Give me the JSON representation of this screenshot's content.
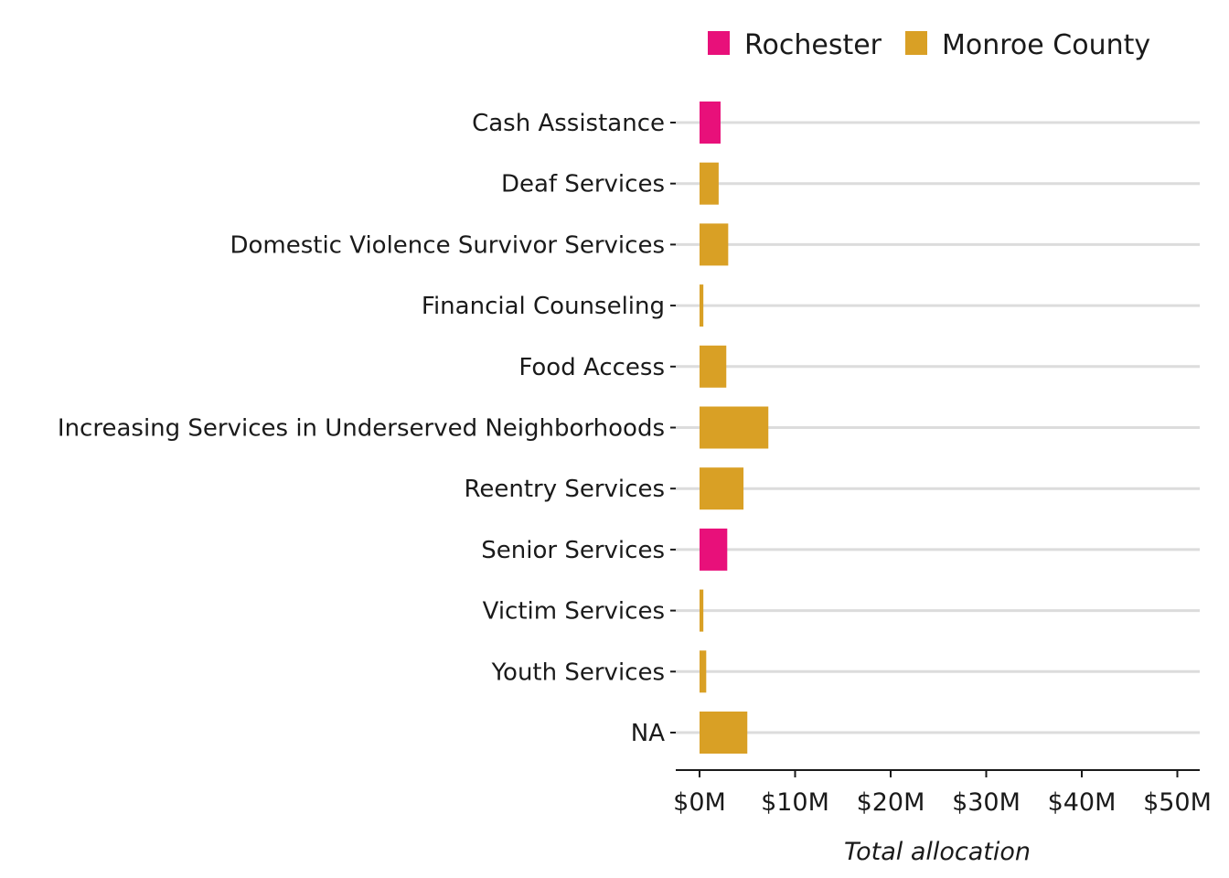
{
  "chart_data": {
    "type": "bar",
    "orientation": "horizontal",
    "categories": [
      "Cash Assistance",
      "Deaf Services",
      "Domestic Violence Survivor Services",
      "Financial Counseling",
      "Food Access",
      "Increasing Services in Underserved Neighborhoods",
      "Reentry Services",
      "Senior Services",
      "Victim Services",
      "Youth Services",
      "NA"
    ],
    "values": [
      2.2,
      2.0,
      3.0,
      0.4,
      2.8,
      7.2,
      4.6,
      2.9,
      0.4,
      0.7,
      5.0
    ],
    "bar_series": [
      "Rochester",
      "Monroe County",
      "Monroe County",
      "Monroe County",
      "Monroe County",
      "Monroe County",
      "Monroe County",
      "Rochester",
      "Monroe County",
      "Monroe County",
      "Monroe County"
    ],
    "series": [
      {
        "name": "Rochester",
        "color": "#E8107A"
      },
      {
        "name": "Monroe County",
        "color": "#D9A025"
      }
    ],
    "xlabel": "Total allocation",
    "ylabel": "",
    "xlim": [
      0,
      50
    ],
    "x_ticks": [
      0,
      10,
      20,
      30,
      40,
      50
    ],
    "x_tick_labels": [
      "$0M",
      "$10M",
      "$20M",
      "$30M",
      "$40M",
      "$50M"
    ],
    "legend_position": "top",
    "grid": "horizontal"
  }
}
